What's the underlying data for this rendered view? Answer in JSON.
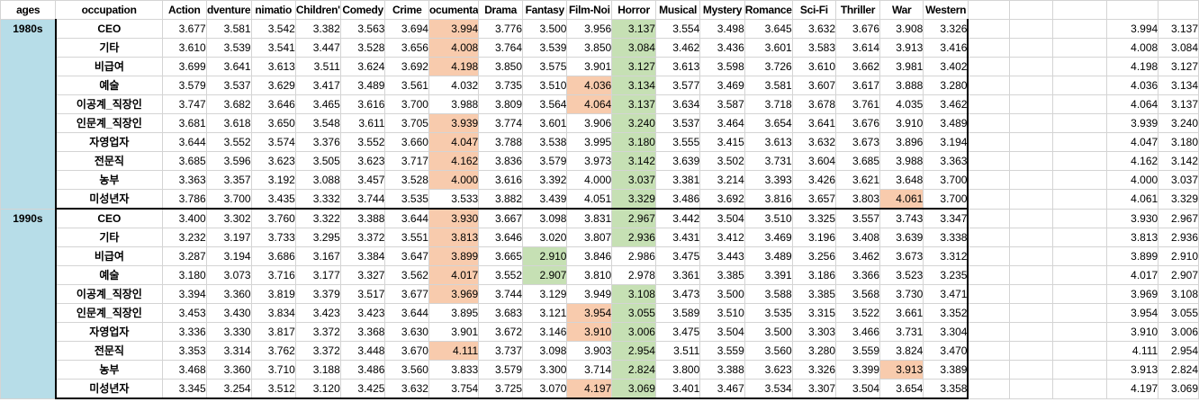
{
  "headers": [
    "ages",
    "occupation",
    "Action",
    "Adventure",
    "Animation",
    "Children's",
    "Comedy",
    "Crime",
    "Documentary",
    "Drama",
    "Fantasy",
    "Film-Noir",
    "Horror",
    "Musical",
    "Mystery",
    "Romance",
    "Sci-Fi",
    "Thriller",
    "War",
    "Western"
  ],
  "header_display": [
    "ages",
    "occupation",
    "Action",
    "dventure",
    "nimatio",
    "Children'",
    "Comedy",
    "Crime",
    "ocumenta",
    "Drama",
    "Fantasy",
    "Film-Noi",
    "Horror",
    "Musical",
    "Mystery",
    "Romance",
    "Sci-Fi",
    "Thriller",
    "War",
    "Western"
  ],
  "colors": {
    "orange": "#f8cbad",
    "green": "#c6e0b4",
    "age_fill": "#b7dde8"
  },
  "groups": [
    {
      "age": "1980s",
      "rows": [
        {
          "occ": "CEO",
          "vals": [
            "3.677",
            "3.581",
            "3.542",
            "3.382",
            "3.563",
            "3.694",
            "3.994",
            "3.776",
            "3.500",
            "3.956",
            "3.137",
            "3.554",
            "3.498",
            "3.645",
            "3.632",
            "3.676",
            "3.908",
            "3.326"
          ],
          "hl": {
            "6": "orange",
            "10": "green"
          },
          "extra": [
            "3.994",
            "3.137"
          ]
        },
        {
          "occ": "기타",
          "vals": [
            "3.610",
            "3.539",
            "3.541",
            "3.447",
            "3.528",
            "3.656",
            "4.008",
            "3.764",
            "3.539",
            "3.850",
            "3.084",
            "3.462",
            "3.436",
            "3.601",
            "3.583",
            "3.614",
            "3.913",
            "3.416"
          ],
          "hl": {
            "6": "orange",
            "10": "green"
          },
          "extra": [
            "4.008",
            "3.084"
          ]
        },
        {
          "occ": "비급여",
          "vals": [
            "3.699",
            "3.641",
            "3.613",
            "3.511",
            "3.624",
            "3.692",
            "4.198",
            "3.850",
            "3.575",
            "3.901",
            "3.127",
            "3.613",
            "3.598",
            "3.726",
            "3.610",
            "3.662",
            "3.981",
            "3.402"
          ],
          "hl": {
            "6": "orange",
            "10": "green"
          },
          "extra": [
            "4.198",
            "3.127"
          ]
        },
        {
          "occ": "예술",
          "vals": [
            "3.579",
            "3.537",
            "3.629",
            "3.417",
            "3.489",
            "3.561",
            "4.032",
            "3.735",
            "3.510",
            "4.036",
            "3.134",
            "3.577",
            "3.469",
            "3.581",
            "3.607",
            "3.617",
            "3.888",
            "3.280"
          ],
          "hl": {
            "9": "orange",
            "10": "green"
          },
          "extra": [
            "4.036",
            "3.134"
          ]
        },
        {
          "occ": "이공계_직장인",
          "vals": [
            "3.747",
            "3.682",
            "3.646",
            "3.465",
            "3.616",
            "3.700",
            "3.988",
            "3.809",
            "3.564",
            "4.064",
            "3.137",
            "3.634",
            "3.587",
            "3.718",
            "3.678",
            "3.761",
            "4.035",
            "3.462"
          ],
          "hl": {
            "9": "orange",
            "10": "green"
          },
          "extra": [
            "4.064",
            "3.137"
          ]
        },
        {
          "occ": "인문계_직장인",
          "vals": [
            "3.681",
            "3.618",
            "3.650",
            "3.548",
            "3.611",
            "3.705",
            "3.939",
            "3.774",
            "3.601",
            "3.906",
            "3.240",
            "3.537",
            "3.464",
            "3.654",
            "3.641",
            "3.676",
            "3.910",
            "3.489"
          ],
          "hl": {
            "6": "orange",
            "10": "green"
          },
          "extra": [
            "3.939",
            "3.240"
          ]
        },
        {
          "occ": "자영업자",
          "vals": [
            "3.644",
            "3.552",
            "3.574",
            "3.376",
            "3.552",
            "3.660",
            "4.047",
            "3.788",
            "3.538",
            "3.995",
            "3.180",
            "3.555",
            "3.415",
            "3.613",
            "3.632",
            "3.673",
            "3.896",
            "3.194"
          ],
          "hl": {
            "6": "orange",
            "10": "green"
          },
          "extra": [
            "4.047",
            "3.180"
          ]
        },
        {
          "occ": "전문직",
          "vals": [
            "3.685",
            "3.596",
            "3.623",
            "3.505",
            "3.623",
            "3.717",
            "4.162",
            "3.836",
            "3.579",
            "3.973",
            "3.142",
            "3.639",
            "3.502",
            "3.731",
            "3.604",
            "3.685",
            "3.988",
            "3.363"
          ],
          "hl": {
            "6": "orange",
            "10": "green"
          },
          "extra": [
            "4.162",
            "3.142"
          ]
        },
        {
          "occ": "농부",
          "vals": [
            "3.363",
            "3.357",
            "3.192",
            "3.088",
            "3.457",
            "3.528",
            "4.000",
            "3.616",
            "3.392",
            "4.000",
            "3.037",
            "3.381",
            "3.214",
            "3.393",
            "3.426",
            "3.621",
            "3.648",
            "3.700"
          ],
          "hl": {
            "6": "orange",
            "10": "green"
          },
          "extra": [
            "4.000",
            "3.037"
          ]
        },
        {
          "occ": "미성년자",
          "vals": [
            "3.786",
            "3.700",
            "3.435",
            "3.332",
            "3.744",
            "3.535",
            "3.533",
            "3.882",
            "3.439",
            "4.051",
            "3.329",
            "3.486",
            "3.692",
            "3.816",
            "3.657",
            "3.803",
            "4.061",
            "3.700"
          ],
          "hl": {
            "16": "orange",
            "10": "green"
          },
          "extra": [
            "4.061",
            "3.329"
          ]
        }
      ]
    },
    {
      "age": "1990s",
      "rows": [
        {
          "occ": "CEO",
          "vals": [
            "3.400",
            "3.302",
            "3.760",
            "3.322",
            "3.388",
            "3.644",
            "3.930",
            "3.667",
            "3.098",
            "3.831",
            "2.967",
            "3.442",
            "3.504",
            "3.510",
            "3.325",
            "3.557",
            "3.743",
            "3.347"
          ],
          "hl": {
            "6": "orange",
            "10": "green"
          },
          "extra": [
            "3.930",
            "2.967"
          ]
        },
        {
          "occ": "기타",
          "vals": [
            "3.232",
            "3.197",
            "3.733",
            "3.295",
            "3.372",
            "3.551",
            "3.813",
            "3.646",
            "3.020",
            "3.807",
            "2.936",
            "3.431",
            "3.412",
            "3.469",
            "3.196",
            "3.408",
            "3.639",
            "3.338"
          ],
          "hl": {
            "6": "orange",
            "10": "green"
          },
          "extra": [
            "3.813",
            "2.936"
          ]
        },
        {
          "occ": "비급여",
          "vals": [
            "3.287",
            "3.194",
            "3.686",
            "3.167",
            "3.384",
            "3.647",
            "3.899",
            "3.665",
            "2.910",
            "3.846",
            "2.986",
            "3.475",
            "3.443",
            "3.489",
            "3.256",
            "3.462",
            "3.673",
            "3.312"
          ],
          "hl": {
            "6": "orange",
            "8": "green"
          },
          "extra": [
            "3.899",
            "2.910"
          ]
        },
        {
          "occ": "예술",
          "vals": [
            "3.180",
            "3.073",
            "3.716",
            "3.177",
            "3.327",
            "3.562",
            "4.017",
            "3.552",
            "2.907",
            "3.810",
            "2.978",
            "3.361",
            "3.385",
            "3.391",
            "3.186",
            "3.366",
            "3.523",
            "3.235"
          ],
          "hl": {
            "6": "orange",
            "8": "green"
          },
          "extra": [
            "4.017",
            "2.907"
          ]
        },
        {
          "occ": "이공계_직장인",
          "vals": [
            "3.394",
            "3.360",
            "3.819",
            "3.379",
            "3.517",
            "3.677",
            "3.969",
            "3.744",
            "3.129",
            "3.949",
            "3.108",
            "3.473",
            "3.500",
            "3.588",
            "3.385",
            "3.568",
            "3.730",
            "3.471"
          ],
          "hl": {
            "6": "orange",
            "10": "green"
          },
          "extra": [
            "3.969",
            "3.108"
          ]
        },
        {
          "occ": "인문계_직장인",
          "vals": [
            "3.453",
            "3.430",
            "3.834",
            "3.423",
            "3.423",
            "3.644",
            "3.895",
            "3.683",
            "3.121",
            "3.954",
            "3.055",
            "3.589",
            "3.510",
            "3.535",
            "3.315",
            "3.522",
            "3.661",
            "3.352"
          ],
          "hl": {
            "9": "orange",
            "10": "green"
          },
          "extra": [
            "3.954",
            "3.055"
          ]
        },
        {
          "occ": "자영업자",
          "vals": [
            "3.336",
            "3.330",
            "3.817",
            "3.372",
            "3.368",
            "3.630",
            "3.901",
            "3.672",
            "3.146",
            "3.910",
            "3.006",
            "3.475",
            "3.504",
            "3.500",
            "3.303",
            "3.466",
            "3.731",
            "3.304"
          ],
          "hl": {
            "9": "orange",
            "10": "green"
          },
          "extra": [
            "3.910",
            "3.006"
          ]
        },
        {
          "occ": "전문직",
          "vals": [
            "3.353",
            "3.314",
            "3.762",
            "3.372",
            "3.448",
            "3.670",
            "4.111",
            "3.737",
            "3.098",
            "3.903",
            "2.954",
            "3.511",
            "3.559",
            "3.560",
            "3.280",
            "3.559",
            "3.824",
            "3.470"
          ],
          "hl": {
            "6": "orange",
            "10": "green"
          },
          "extra": [
            "4.111",
            "2.954"
          ]
        },
        {
          "occ": "농부",
          "vals": [
            "3.468",
            "3.360",
            "3.710",
            "3.188",
            "3.486",
            "3.560",
            "3.833",
            "3.579",
            "3.300",
            "3.714",
            "2.824",
            "3.800",
            "3.388",
            "3.623",
            "3.326",
            "3.399",
            "3.913",
            "3.389"
          ],
          "hl": {
            "16": "orange",
            "10": "green"
          },
          "extra": [
            "3.913",
            "2.824"
          ]
        },
        {
          "occ": "미성년자",
          "vals": [
            "3.345",
            "3.254",
            "3.512",
            "3.120",
            "3.425",
            "3.632",
            "3.754",
            "3.725",
            "3.070",
            "4.197",
            "3.069",
            "3.401",
            "3.467",
            "3.534",
            "3.307",
            "3.504",
            "3.654",
            "3.358"
          ],
          "hl": {
            "9": "orange",
            "10": "green"
          },
          "extra": [
            "4.197",
            "3.069"
          ]
        }
      ]
    }
  ]
}
